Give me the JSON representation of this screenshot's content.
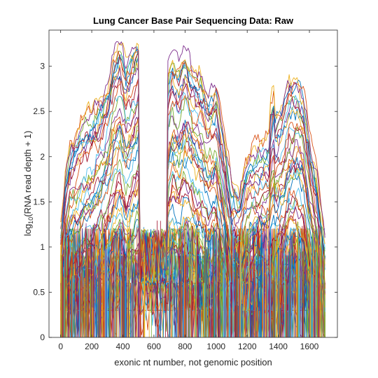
{
  "chart_data": {
    "type": "line",
    "title": "Lung Cancer Base Pair Sequencing Data: Raw",
    "xlabel": "exonic nt number, not genomic position",
    "ylabel_prefix": "log",
    "ylabel_subscript": "10",
    "ylabel_suffix": "(RNA read depth + 1)",
    "xlim": [
      -75,
      1780
    ],
    "ylim": [
      0,
      3.4
    ],
    "xticks": [
      0,
      200,
      400,
      600,
      800,
      1000,
      1200,
      1400,
      1600
    ],
    "yticks": [
      0,
      0.5,
      1,
      1.5,
      2,
      2.5,
      3
    ],
    "xtick_labels": [
      "0",
      "200",
      "400",
      "600",
      "800",
      "1000",
      "1200",
      "1400",
      "1600"
    ],
    "ytick_labels": [
      "0",
      "0.5",
      "1",
      "1.5",
      "2",
      "2.5",
      "3"
    ],
    "grid": false,
    "legend": false,
    "series_count": 60,
    "x_range": [
      0,
      1700
    ],
    "gap_range": [
      500,
      690
    ],
    "mean_profile": {
      "x": [
        0,
        30,
        60,
        100,
        150,
        200,
        250,
        300,
        340,
        380,
        420,
        460,
        499,
        690,
        720,
        760,
        800,
        850,
        900,
        950,
        1000,
        1050,
        1100,
        1150,
        1200,
        1250,
        1300,
        1350,
        1380,
        1420,
        1470,
        1520,
        1560,
        1600,
        1650,
        1700
      ],
      "y": [
        0.7,
        1.25,
        1.5,
        1.6,
        1.75,
        1.8,
        1.95,
        2.1,
        2.4,
        2.55,
        2.3,
        2.45,
        2.6,
        2.25,
        2.45,
        2.3,
        2.5,
        2.3,
        2.2,
        2.0,
        2.1,
        1.6,
        1.1,
        1.0,
        1.35,
        1.45,
        1.5,
        1.55,
        1.8,
        1.85,
        2.1,
        2.15,
        2.05,
        1.6,
        1.2,
        0.5
      ]
    },
    "palette": [
      "#0072BD",
      "#D95319",
      "#EDB120",
      "#7E2F8E",
      "#77AC30",
      "#4DBEEE",
      "#A2142F"
    ]
  }
}
